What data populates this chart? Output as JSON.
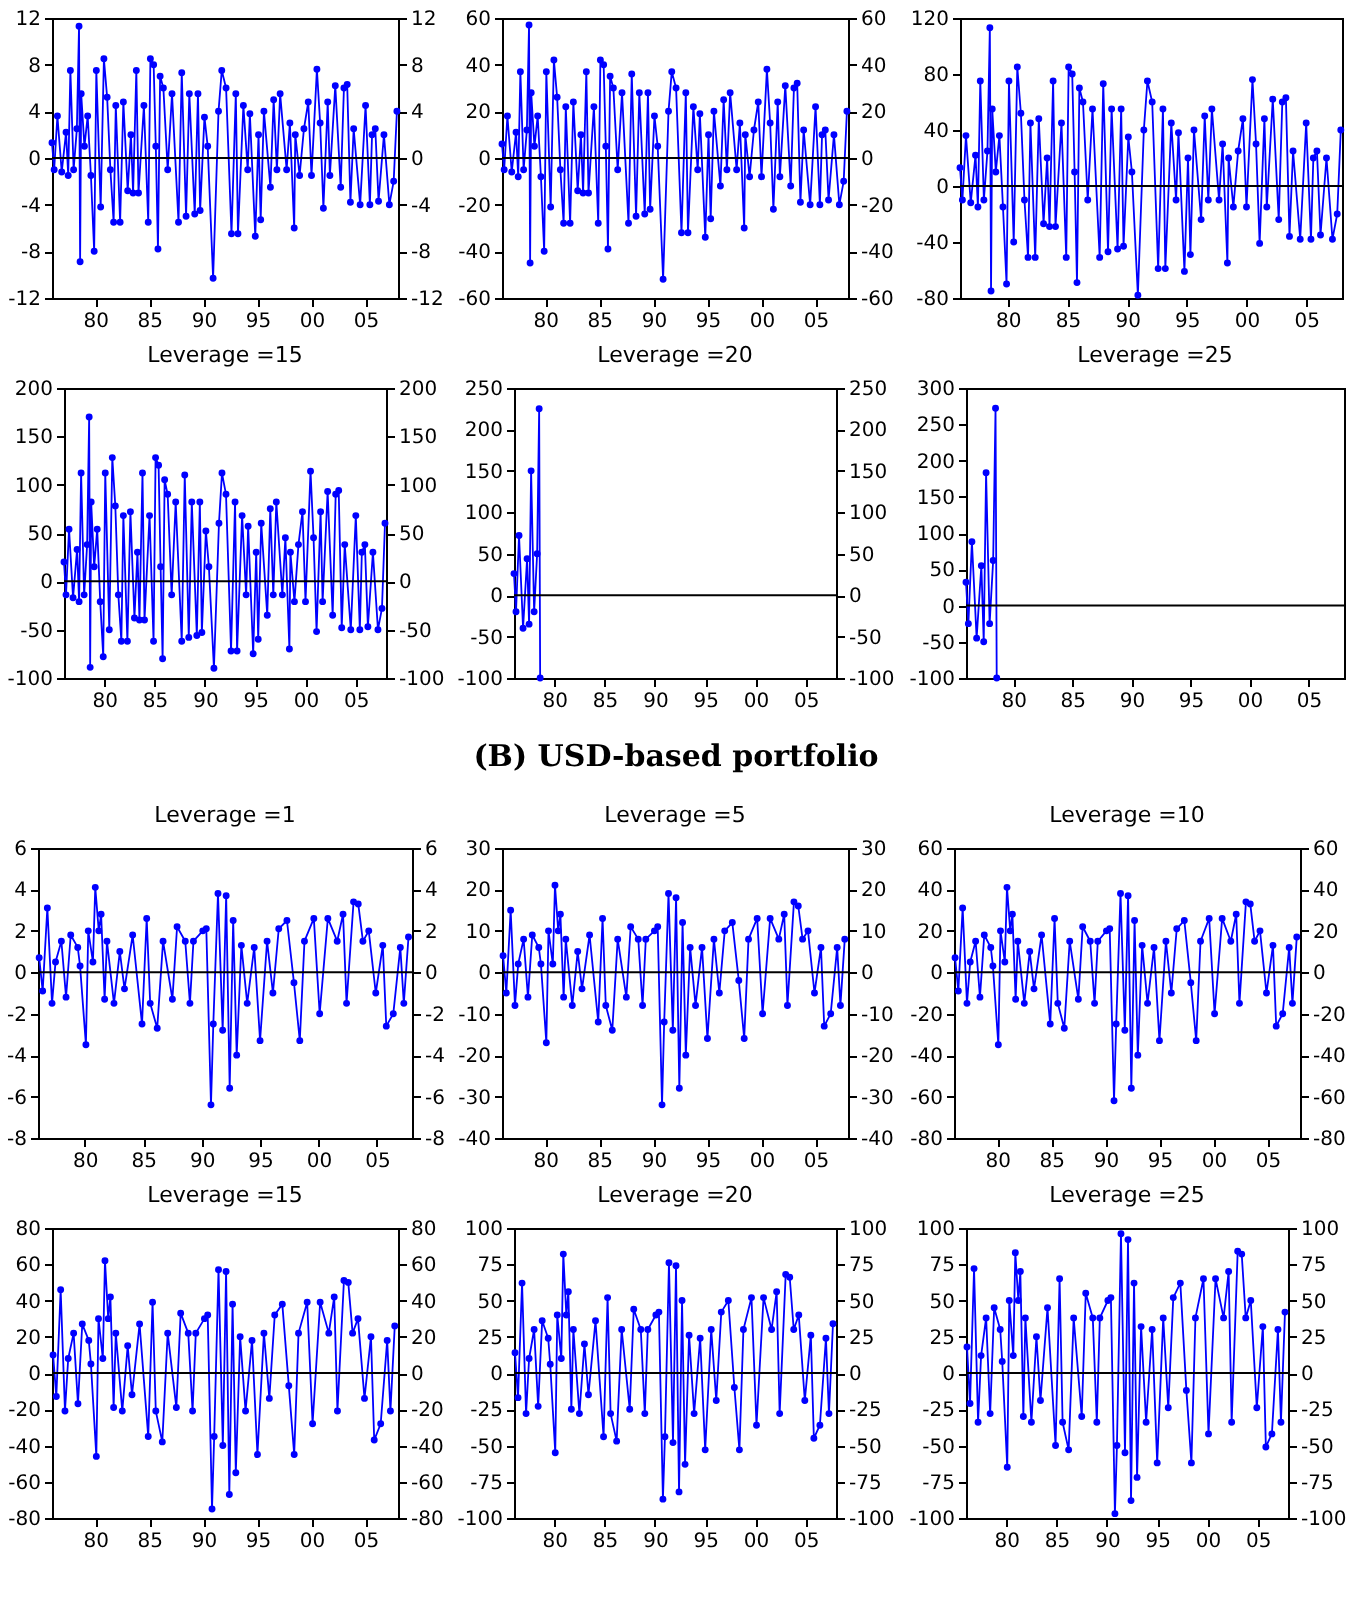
{
  "chart_data": [
    {
      "type": "line",
      "color": "#0000ff",
      "marker": "circle",
      "xlim": [
        1976,
        2008
      ],
      "xticks": [
        {
          "value": 1980,
          "label": "80"
        },
        {
          "value": 1985,
          "label": "85"
        },
        {
          "value": 1990,
          "label": "90"
        },
        {
          "value": 1995,
          "label": "95"
        },
        {
          "value": 2000,
          "label": "00"
        },
        {
          "value": 2005,
          "label": "05"
        }
      ],
      "ylim": [
        -12,
        12
      ],
      "yticks": [
        -12,
        -8,
        -4,
        0,
        4,
        8,
        12
      ],
      "y2lim": [
        -12,
        12
      ],
      "y2ticks": [
        -12,
        -8,
        -4,
        0,
        4,
        8,
        12
      ],
      "ref_lines": [
        {
          "axis": "y",
          "value": 0,
          "color": "#000000"
        }
      ],
      "x": [
        1976.0,
        1976.2,
        1976.5,
        1976.9,
        1977.3,
        1977.5,
        1977.7,
        1978.0,
        1978.3,
        1978.5,
        1978.6,
        1978.7,
        1979.0,
        1979.3,
        1979.6,
        1979.9,
        1980.1,
        1980.5,
        1980.8,
        1981.1,
        1981.4,
        1981.7,
        1981.9,
        1982.3,
        1982.6,
        1983.0,
        1983.3,
        1983.5,
        1983.8,
        1984.0,
        1984.5,
        1984.9,
        1985.1,
        1985.4,
        1985.6,
        1985.8,
        1986.0,
        1986.3,
        1986.7,
        1987.1,
        1987.7,
        1988.0,
        1988.4,
        1988.7,
        1989.2,
        1989.5,
        1989.7,
        1990.1,
        1990.4,
        1990.9,
        1991.4,
        1991.7,
        1992.1,
        1992.6,
        1993.0,
        1993.2,
        1993.7,
        1994.1,
        1994.3,
        1994.8,
        1995.1,
        1995.3,
        1995.6,
        1996.2,
        1996.5,
        1996.8,
        1997.1,
        1997.7,
        1998.0,
        1998.4,
        1998.5,
        1998.9,
        1999.3,
        1999.7,
        2000.0,
        2000.5,
        2000.8,
        2001.1,
        2001.5,
        2001.7,
        2002.2,
        2002.7,
        2003.0,
        2003.3,
        2003.6,
        2003.9,
        2004.5,
        2005.0,
        2005.4,
        2005.6,
        2005.9,
        2006.2,
        2006.7,
        2007.2,
        2007.6,
        2007.9
      ],
      "values": [
        1.3,
        -1.0,
        3.6,
        -1.2,
        2.2,
        -1.5,
        7.5,
        -1.0,
        2.5,
        11.3,
        -8.9,
        5.5,
        1.0,
        3.6,
        -1.5,
        -8.0,
        7.5,
        -4.2,
        8.5,
        5.2,
        -1.0,
        -5.5,
        4.5,
        -5.5,
        4.8,
        -2.8,
        2.0,
        -3.0,
        7.5,
        -3.0,
        4.5,
        -5.5,
        8.5,
        8.0,
        1.0,
        -7.8,
        7.0,
        6.0,
        -1.0,
        5.5,
        -5.5,
        7.3,
        -5.0,
        5.5,
        -4.8,
        5.5,
        -4.5,
        3.5,
        1.0,
        -10.3,
        4.0,
        7.5,
        6.0,
        -6.5,
        5.5,
        -6.5,
        4.5,
        -1.0,
        3.8,
        -6.7,
        2.0,
        -5.3,
        4.0,
        -2.5,
        5.0,
        -1.0,
        5.5,
        -1.0,
        3.0,
        -6.0,
        2.0,
        -1.5,
        2.5,
        4.8,
        -1.5,
        7.6,
        3.0,
        -4.3,
        4.8,
        -1.5,
        6.2,
        -2.5,
        6.0,
        6.3,
        -3.8,
        2.5,
        -4.0,
        4.5,
        -4.0,
        2.0,
        2.5,
        -3.7,
        2.0,
        -4.0,
        -2.0,
        4.0
      ]
    },
    {
      "type": "line",
      "color": "#0000ff",
      "marker": "circle",
      "xlim": [
        1976,
        2008
      ],
      "xticks": [
        {
          "value": 1980,
          "label": "80"
        },
        {
          "value": 1985,
          "label": "85"
        },
        {
          "value": 1990,
          "label": "90"
        },
        {
          "value": 1995,
          "label": "95"
        },
        {
          "value": 2000,
          "label": "00"
        },
        {
          "value": 2005,
          "label": "05"
        }
      ],
      "ylim": [
        -60,
        60
      ],
      "yticks": [
        -60,
        -40,
        -20,
        0,
        20,
        40,
        60
      ],
      "y2lim": [
        -60,
        60
      ],
      "y2ticks": [
        -60,
        -40,
        -20,
        0,
        20,
        40,
        60
      ],
      "ref_lines": [
        {
          "axis": "y",
          "value": 0,
          "color": "#000000"
        }
      ],
      "x": [
        1976.0,
        1976.2,
        1976.5,
        1976.9,
        1977.3,
        1977.5,
        1977.7,
        1978.0,
        1978.3,
        1978.5,
        1978.6,
        1978.7,
        1979.0,
        1979.3,
        1979.6,
        1979.9,
        1980.1,
        1980.5,
        1980.8,
        1981.1,
        1981.4,
        1981.7,
        1981.9,
        1982.3,
        1982.6,
        1983.0,
        1983.3,
        1983.5,
        1983.8,
        1984.0,
        1984.5,
        1984.9,
        1985.1,
        1985.4,
        1985.6,
        1985.8,
        1986.0,
        1986.3,
        1986.7,
        1987.1,
        1987.7,
        1988.0,
        1988.4,
        1988.7,
        1989.2,
        1989.5,
        1989.7,
        1990.1,
        1990.4,
        1990.9,
        1991.4,
        1991.7,
        1992.1,
        1992.6,
        1993.0,
        1993.2,
        1993.7,
        1994.1,
        1994.3,
        1994.8,
        1995.1,
        1995.3,
        1995.6,
        1996.2,
        1996.5,
        1996.8,
        1997.1,
        1997.7,
        1998.0,
        1998.4,
        1998.5,
        1998.9,
        1999.3,
        1999.7,
        2000.0,
        2000.5,
        2000.8,
        2001.1,
        2001.5,
        2001.7,
        2002.2,
        2002.7,
        2003.0,
        2003.3,
        2003.6,
        2003.9,
        2004.5,
        2005.0,
        2005.4,
        2005.6,
        2005.9,
        2006.2,
        2006.7,
        2007.2,
        2007.6,
        2007.9
      ],
      "values": [
        6,
        -5,
        18,
        -6,
        11,
        -8,
        37,
        -5,
        12,
        57,
        -45,
        28,
        5,
        18,
        -8,
        -40,
        37,
        -21,
        42,
        26,
        -5,
        -28,
        22,
        -28,
        24,
        -14,
        10,
        -15,
        37,
        -15,
        22,
        -28,
        42,
        40,
        5,
        -39,
        35,
        30,
        -5,
        28,
        -28,
        36,
        -25,
        28,
        -24,
        28,
        -22,
        18,
        5,
        -52,
        20,
        37,
        30,
        -32,
        28,
        -32,
        22,
        -5,
        19,
        -34,
        10,
        -26,
        20,
        -12,
        25,
        -5,
        28,
        -5,
        15,
        -30,
        10,
        -8,
        12,
        24,
        -8,
        38,
        15,
        -22,
        24,
        -8,
        31,
        -12,
        30,
        32,
        -19,
        12,
        -20,
        22,
        -20,
        10,
        12,
        -18,
        10,
        -20,
        -10,
        20
      ]
    },
    {
      "type": "line",
      "color": "#0000ff",
      "marker": "circle",
      "xlim": [
        1976,
        2008
      ],
      "xticks": [
        {
          "value": 1980,
          "label": "80"
        },
        {
          "value": 1985,
          "label": "85"
        },
        {
          "value": 1990,
          "label": "90"
        },
        {
          "value": 1995,
          "label": "95"
        },
        {
          "value": 2000,
          "label": "00"
        },
        {
          "value": 2005,
          "label": "05"
        }
      ],
      "ylim": [
        -80,
        120
      ],
      "yticks": [
        -80,
        -40,
        0,
        40,
        80,
        120
      ],
      "ref_lines": [
        {
          "axis": "y",
          "value": 0,
          "color": "#000000"
        }
      ],
      "x": [
        1976.0,
        1976.2,
        1976.5,
        1976.9,
        1977.3,
        1977.5,
        1977.7,
        1978.0,
        1978.3,
        1978.5,
        1978.6,
        1978.7,
        1979.0,
        1979.3,
        1979.6,
        1979.9,
        1980.1,
        1980.5,
        1980.8,
        1981.1,
        1981.4,
        1981.7,
        1981.9,
        1982.3,
        1982.6,
        1983.0,
        1983.3,
        1983.5,
        1983.8,
        1984.0,
        1984.5,
        1984.9,
        1985.1,
        1985.4,
        1985.6,
        1985.8,
        1986.0,
        1986.3,
        1986.7,
        1987.1,
        1987.7,
        1988.0,
        1988.4,
        1988.7,
        1989.2,
        1989.5,
        1989.7,
        1990.1,
        1990.4,
        1990.9,
        1991.4,
        1991.7,
        1992.1,
        1992.6,
        1993.0,
        1993.2,
        1993.7,
        1994.1,
        1994.3,
        1994.8,
        1995.1,
        1995.3,
        1995.6,
        1996.2,
        1996.5,
        1996.8,
        1997.1,
        1997.7,
        1998.0,
        1998.4,
        1998.5,
        1998.9,
        1999.3,
        1999.7,
        2000.0,
        2000.5,
        2000.8,
        2001.1,
        2001.5,
        2001.7,
        2002.2,
        2002.7,
        2003.0,
        2003.3,
        2003.6,
        2003.9,
        2004.5,
        2005.0,
        2005.4,
        2005.6,
        2005.9,
        2006.2,
        2006.7,
        2007.2,
        2007.6,
        2007.9
      ],
      "values": [
        13,
        -10,
        36,
        -12,
        22,
        -15,
        75,
        -10,
        25,
        113,
        -75,
        55,
        10,
        36,
        -15,
        -70,
        75,
        -40,
        85,
        52,
        -10,
        -51,
        45,
        -51,
        48,
        -27,
        20,
        -29,
        75,
        -29,
        45,
        -51,
        85,
        80,
        10,
        -69,
        70,
        60,
        -10,
        55,
        -51,
        73,
        -47,
        55,
        -45,
        55,
        -43,
        35,
        10,
        -78,
        40,
        75,
        60,
        -59,
        55,
        -59,
        45,
        -10,
        38,
        -61,
        20,
        -49,
        40,
        -24,
        50,
        -10,
        55,
        -10,
        30,
        -55,
        20,
        -15,
        25,
        48,
        -15,
        76,
        30,
        -41,
        48,
        -15,
        62,
        -24,
        60,
        63,
        -36,
        25,
        -38,
        45,
        -38,
        20,
        25,
        -35,
        20,
        -38,
        -20,
        40
      ]
    },
    {
      "type": "line",
      "title": "Leverage =15",
      "color": "#0000ff",
      "marker": "circle",
      "xlim": [
        1976,
        2008
      ],
      "xticks": [
        {
          "value": 1980,
          "label": "80"
        },
        {
          "value": 1985,
          "label": "85"
        },
        {
          "value": 1990,
          "label": "90"
        },
        {
          "value": 1995,
          "label": "95"
        },
        {
          "value": 2000,
          "label": "00"
        },
        {
          "value": 2005,
          "label": "05"
        }
      ],
      "ylim": [
        -100,
        200
      ],
      "yticks": [
        -100,
        -50,
        0,
        50,
        100,
        150,
        200
      ],
      "y2lim": [
        -100,
        200
      ],
      "y2ticks": [
        -100,
        -50,
        0,
        50,
        100,
        150,
        200
      ],
      "ref_lines": [
        {
          "axis": "y",
          "value": 0,
          "color": "#000000"
        }
      ],
      "x": [
        1976.0,
        1976.2,
        1976.5,
        1976.9,
        1977.3,
        1977.5,
        1977.7,
        1978.0,
        1978.3,
        1978.5,
        1978.6,
        1978.7,
        1979.0,
        1979.3,
        1979.6,
        1979.9,
        1980.1,
        1980.5,
        1980.8,
        1981.1,
        1981.4,
        1981.7,
        1981.9,
        1982.3,
        1982.6,
        1983.0,
        1983.3,
        1983.5,
        1983.8,
        1984.0,
        1984.5,
        1984.9,
        1985.1,
        1985.4,
        1985.6,
        1985.8,
        1986.0,
        1986.3,
        1986.7,
        1987.1,
        1987.7,
        1988.0,
        1988.4,
        1988.7,
        1989.2,
        1989.5,
        1989.7,
        1990.1,
        1990.4,
        1990.9,
        1991.4,
        1991.7,
        1992.1,
        1992.6,
        1993.0,
        1993.2,
        1993.7,
        1994.1,
        1994.3,
        1994.8,
        1995.1,
        1995.3,
        1995.6,
        1996.2,
        1996.5,
        1996.8,
        1997.1,
        1997.7,
        1998.0,
        1998.4,
        1998.5,
        1998.9,
        1999.3,
        1999.7,
        2000.0,
        2000.5,
        2000.8,
        2001.1,
        2001.5,
        2001.7,
        2002.2,
        2002.7,
        2003.0,
        2003.3,
        2003.6,
        2003.9,
        2004.5,
        2005.0,
        2005.4,
        2005.6,
        2005.9,
        2006.2,
        2006.7,
        2007.2,
        2007.6,
        2007.9
      ],
      "values": [
        20,
        -14,
        54,
        -17,
        33,
        -21,
        112,
        -14,
        38,
        170,
        -89,
        82,
        15,
        54,
        -21,
        -78,
        112,
        -50,
        128,
        78,
        -14,
        -62,
        68,
        -62,
        72,
        -38,
        30,
        -40,
        112,
        -40,
        68,
        -62,
        128,
        120,
        15,
        -80,
        105,
        90,
        -14,
        82,
        -62,
        110,
        -58,
        82,
        -56,
        82,
        -53,
        52,
        15,
        -90,
        60,
        112,
        90,
        -72,
        82,
        -72,
        68,
        -14,
        57,
        -75,
        30,
        -60,
        60,
        -35,
        75,
        -14,
        82,
        -14,
        45,
        -70,
        30,
        -21,
        38,
        72,
        -21,
        114,
        45,
        -52,
        72,
        -21,
        93,
        -35,
        90,
        94,
        -48,
        38,
        -50,
        68,
        -50,
        30,
        38,
        -47,
        30,
        -50,
        -28,
        60
      ]
    },
    {
      "type": "line",
      "title": "Leverage =20",
      "color": "#0000ff",
      "marker": "circle",
      "xlim": [
        1976,
        2008
      ],
      "xticks": [
        {
          "value": 1980,
          "label": "80"
        },
        {
          "value": 1985,
          "label": "85"
        },
        {
          "value": 1990,
          "label": "90"
        },
        {
          "value": 1995,
          "label": "95"
        },
        {
          "value": 2000,
          "label": "00"
        },
        {
          "value": 2005,
          "label": "05"
        }
      ],
      "ylim": [
        -100,
        250
      ],
      "yticks": [
        -100,
        -50,
        0,
        50,
        100,
        150,
        200,
        250
      ],
      "y2lim": [
        -100,
        250
      ],
      "y2ticks": [
        -100,
        -50,
        0,
        50,
        100,
        150,
        200,
        250
      ],
      "ref_lines": [
        {
          "axis": "y",
          "value": 0,
          "color": "#000000"
        }
      ],
      "x": [
        1976.0,
        1976.2,
        1976.5,
        1976.9,
        1977.3,
        1977.5,
        1977.7,
        1978.0,
        1978.3,
        1978.5,
        1978.6
      ],
      "values": [
        26,
        -20,
        72,
        -40,
        44,
        -35,
        150,
        -20,
        50,
        225,
        -100
      ]
    },
    {
      "type": "line",
      "title": "Leverage =25",
      "color": "#0000ff",
      "marker": "circle",
      "xlim": [
        1976,
        2008
      ],
      "xticks": [
        {
          "value": 1980,
          "label": "80"
        },
        {
          "value": 1985,
          "label": "85"
        },
        {
          "value": 1990,
          "label": "90"
        },
        {
          "value": 1995,
          "label": "95"
        },
        {
          "value": 2000,
          "label": "00"
        },
        {
          "value": 2005,
          "label": "05"
        }
      ],
      "ylim": [
        -100,
        300
      ],
      "yticks": [
        -100,
        -50,
        0,
        50,
        100,
        150,
        200,
        250,
        300
      ],
      "ref_lines": [
        {
          "axis": "y",
          "value": 0,
          "color": "#000000"
        }
      ],
      "x": [
        1976.0,
        1976.2,
        1976.5,
        1976.9,
        1977.3,
        1977.5,
        1977.7,
        1978.0,
        1978.3,
        1978.5,
        1978.6
      ],
      "values": [
        32,
        -25,
        88,
        -45,
        55,
        -50,
        183,
        -25,
        62,
        272,
        -100
      ]
    },
    {
      "type": "line",
      "title": "Leverage =1",
      "annotations": [
        "(B) USD-based portfolio"
      ],
      "color": "#0000ff",
      "marker": "circle",
      "xlim": [
        1976,
        2008
      ],
      "xticks": [
        {
          "value": 1980,
          "label": "80"
        },
        {
          "value": 1985,
          "label": "85"
        },
        {
          "value": 1990,
          "label": "90"
        },
        {
          "value": 1995,
          "label": "95"
        },
        {
          "value": 2000,
          "label": "00"
        },
        {
          "value": 2005,
          "label": "05"
        }
      ],
      "ylim": [
        -8,
        6
      ],
      "yticks": [
        -8,
        -6,
        -4,
        -2,
        0,
        2,
        4,
        6
      ],
      "y2lim": [
        -8,
        6
      ],
      "y2ticks": [
        -8,
        -6,
        -4,
        -2,
        0,
        2,
        4,
        6
      ],
      "ref_lines": [
        {
          "axis": "y",
          "value": 0,
          "color": "#000000"
        }
      ],
      "x": [
        1976.1,
        1976.4,
        1976.8,
        1977.2,
        1977.5,
        1978.0,
        1978.4,
        1978.8,
        1979.4,
        1979.6,
        1980.1,
        1980.3,
        1980.7,
        1980.9,
        1981.2,
        1981.4,
        1981.7,
        1981.9,
        1982.5,
        1983.0,
        1983.4,
        1984.1,
        1984.9,
        1985.3,
        1985.6,
        1986.2,
        1986.7,
        1987.5,
        1987.9,
        1988.6,
        1989.0,
        1989.3,
        1990.1,
        1990.4,
        1990.8,
        1991.0,
        1991.4,
        1991.8,
        1992.1,
        1992.4,
        1992.7,
        1993.0,
        1993.4,
        1993.9,
        1994.5,
        1995.0,
        1995.6,
        1996.1,
        1996.6,
        1997.3,
        1997.9,
        1998.4,
        1998.8,
        1999.6,
        2000.1,
        2000.8,
        2001.6,
        2002.1,
        2002.4,
        2003.0,
        2003.4,
        2003.8,
        2004.3,
        2004.9,
        2005.5,
        2005.8,
        2006.4,
        2007.0,
        2007.3,
        2007.7
      ],
      "values": [
        0.7,
        -0.9,
        3.1,
        -1.5,
        0.5,
        1.5,
        -1.2,
        1.8,
        1.2,
        0.3,
        -3.5,
        2.0,
        0.5,
        4.1,
        2.0,
        2.8,
        -1.3,
        1.5,
        -1.5,
        1.0,
        -0.8,
        1.8,
        -2.5,
        2.6,
        -1.5,
        -2.7,
        1.5,
        -1.3,
        2.2,
        1.5,
        -1.5,
        1.5,
        2.0,
        2.1,
        -6.4,
        -2.5,
        3.8,
        -2.8,
        3.7,
        -5.6,
        2.5,
        -4.0,
        1.3,
        -1.5,
        1.2,
        -3.3,
        1.5,
        -1.0,
        2.1,
        2.5,
        -0.5,
        -3.3,
        1.5,
        2.6,
        -2.0,
        2.6,
        1.5,
        2.8,
        -1.5,
        3.4,
        3.3,
        1.5,
        2.0,
        -1.0,
        1.3,
        -2.6,
        -2.0,
        1.2,
        -1.5,
        1.7
      ]
    },
    {
      "type": "line",
      "title": "Leverage =5",
      "color": "#0000ff",
      "marker": "circle",
      "xlim": [
        1976,
        2008
      ],
      "xticks": [
        {
          "value": 1980,
          "label": "80"
        },
        {
          "value": 1985,
          "label": "85"
        },
        {
          "value": 1990,
          "label": "90"
        },
        {
          "value": 1995,
          "label": "95"
        },
        {
          "value": 2000,
          "label": "00"
        },
        {
          "value": 2005,
          "label": "05"
        }
      ],
      "ylim": [
        -40,
        30
      ],
      "yticks": [
        -40,
        -30,
        -20,
        -10,
        0,
        10,
        20,
        30
      ],
      "y2lim": [
        -40,
        30
      ],
      "y2ticks": [
        -40,
        -30,
        -20,
        -10,
        0,
        10,
        20,
        30
      ],
      "ref_lines": [
        {
          "axis": "y",
          "value": 0,
          "color": "#000000"
        }
      ],
      "x": [
        1976.1,
        1976.4,
        1976.8,
        1977.2,
        1977.5,
        1978.0,
        1978.4,
        1978.8,
        1979.4,
        1979.6,
        1980.1,
        1980.3,
        1980.7,
        1980.9,
        1981.2,
        1981.4,
        1981.7,
        1981.9,
        1982.5,
        1983.0,
        1983.4,
        1984.1,
        1984.9,
        1985.3,
        1985.6,
        1986.2,
        1986.7,
        1987.5,
        1987.9,
        1988.6,
        1989.0,
        1989.3,
        1990.1,
        1990.4,
        1990.8,
        1991.0,
        1991.4,
        1991.8,
        1992.1,
        1992.4,
        1992.7,
        1993.0,
        1993.4,
        1993.9,
        1994.5,
        1995.0,
        1995.6,
        1996.1,
        1996.6,
        1997.3,
        1997.9,
        1998.4,
        1998.8,
        1999.6,
        2000.1,
        2000.8,
        2001.6,
        2002.1,
        2002.4,
        2003.0,
        2003.4,
        2003.8,
        2004.3,
        2004.9,
        2005.5,
        2005.8,
        2006.4,
        2007.0,
        2007.3,
        2007.7
      ],
      "values": [
        4,
        -5,
        15,
        -8,
        2,
        8,
        -6,
        9,
        6,
        2,
        -17,
        10,
        2,
        21,
        10,
        14,
        -6,
        8,
        -8,
        5,
        -4,
        9,
        -12,
        13,
        -8,
        -14,
        8,
        -6,
        11,
        8,
        -8,
        8,
        10,
        11,
        -32,
        -12,
        19,
        -14,
        18,
        -28,
        12,
        -20,
        6,
        -8,
        6,
        -16,
        8,
        -5,
        10,
        12,
        -2,
        -16,
        8,
        13,
        -10,
        13,
        8,
        14,
        -8,
        17,
        16,
        8,
        10,
        -5,
        6,
        -13,
        -10,
        6,
        -8,
        8
      ]
    },
    {
      "type": "line",
      "title": "Leverage =10",
      "color": "#0000ff",
      "marker": "circle",
      "xlim": [
        1976,
        2008
      ],
      "xticks": [
        {
          "value": 1980,
          "label": "80"
        },
        {
          "value": 1985,
          "label": "85"
        },
        {
          "value": 1990,
          "label": "90"
        },
        {
          "value": 1995,
          "label": "95"
        },
        {
          "value": 2000,
          "label": "00"
        },
        {
          "value": 2005,
          "label": "05"
        }
      ],
      "ylim": [
        -80,
        60
      ],
      "yticks": [
        -80,
        -60,
        -40,
        -20,
        0,
        20,
        40,
        60
      ],
      "y2lim": [
        -80,
        60
      ],
      "y2ticks": [
        -80,
        -60,
        -40,
        -20,
        0,
        20,
        40,
        60
      ],
      "ref_lines": [
        {
          "axis": "y",
          "value": 0,
          "color": "#000000"
        }
      ],
      "x": [
        1976.1,
        1976.4,
        1976.8,
        1977.2,
        1977.5,
        1978.0,
        1978.4,
        1978.8,
        1979.4,
        1979.6,
        1980.1,
        1980.3,
        1980.7,
        1980.9,
        1981.2,
        1981.4,
        1981.7,
        1981.9,
        1982.5,
        1983.0,
        1983.4,
        1984.1,
        1984.9,
        1985.3,
        1985.6,
        1986.2,
        1986.7,
        1987.5,
        1987.9,
        1988.6,
        1989.0,
        1989.3,
        1990.1,
        1990.4,
        1990.8,
        1991.0,
        1991.4,
        1991.8,
        1992.1,
        1992.4,
        1992.7,
        1993.0,
        1993.4,
        1993.9,
        1994.5,
        1995.0,
        1995.6,
        1996.1,
        1996.6,
        1997.3,
        1997.9,
        1998.4,
        1998.8,
        1999.6,
        2000.1,
        2000.8,
        2001.6,
        2002.1,
        2002.4,
        2003.0,
        2003.4,
        2003.8,
        2004.3,
        2004.9,
        2005.5,
        2005.8,
        2006.4,
        2007.0,
        2007.3,
        2007.7
      ],
      "values": [
        7,
        -9,
        31,
        -15,
        5,
        15,
        -12,
        18,
        12,
        3,
        -35,
        20,
        5,
        41,
        20,
        28,
        -13,
        15,
        -15,
        10,
        -8,
        18,
        -25,
        26,
        -15,
        -27,
        15,
        -13,
        22,
        15,
        -15,
        15,
        20,
        21,
        -62,
        -25,
        38,
        -28,
        37,
        -56,
        25,
        -40,
        13,
        -15,
        12,
        -33,
        15,
        -10,
        21,
        25,
        -5,
        -33,
        15,
        26,
        -20,
        26,
        15,
        28,
        -15,
        34,
        33,
        15,
        20,
        -10,
        13,
        -26,
        -20,
        12,
        -15,
        17
      ]
    },
    {
      "type": "line",
      "title": "Leverage =15",
      "color": "#0000ff",
      "marker": "circle",
      "xlim": [
        1976,
        2008
      ],
      "xticks": [
        {
          "value": 1980,
          "label": "80"
        },
        {
          "value": 1985,
          "label": "85"
        },
        {
          "value": 1990,
          "label": "90"
        },
        {
          "value": 1995,
          "label": "95"
        },
        {
          "value": 2000,
          "label": "00"
        },
        {
          "value": 2005,
          "label": "05"
        }
      ],
      "ylim": [
        -80,
        80
      ],
      "yticks": [
        -80,
        -60,
        -40,
        -20,
        0,
        20,
        40,
        60,
        80
      ],
      "y2lim": [
        -80,
        80
      ],
      "y2ticks": [
        -80,
        -60,
        -40,
        -20,
        0,
        20,
        40,
        60,
        80
      ],
      "ref_lines": [
        {
          "axis": "y",
          "value": 0,
          "color": "#000000"
        }
      ],
      "x": [
        1976.1,
        1976.4,
        1976.8,
        1977.2,
        1977.5,
        1978.0,
        1978.4,
        1978.8,
        1979.4,
        1979.6,
        1980.1,
        1980.3,
        1980.7,
        1980.9,
        1981.2,
        1981.4,
        1981.7,
        1981.9,
        1982.5,
        1983.0,
        1983.4,
        1984.1,
        1984.9,
        1985.3,
        1985.6,
        1986.2,
        1986.7,
        1987.5,
        1987.9,
        1988.6,
        1989.0,
        1989.3,
        1990.1,
        1990.4,
        1990.8,
        1991.0,
        1991.4,
        1991.8,
        1992.1,
        1992.4,
        1992.7,
        1993.0,
        1993.4,
        1993.9,
        1994.5,
        1995.0,
        1995.6,
        1996.1,
        1996.6,
        1997.3,
        1997.9,
        1998.4,
        1998.8,
        1999.6,
        2000.1,
        2000.8,
        2001.6,
        2002.1,
        2002.4,
        2003.0,
        2003.4,
        2003.8,
        2004.3,
        2004.9,
        2005.5,
        2005.8,
        2006.4,
        2007.0,
        2007.3,
        2007.7
      ],
      "values": [
        10,
        -13,
        46,
        -21,
        8,
        22,
        -17,
        27,
        18,
        5,
        -46,
        30,
        8,
        62,
        30,
        42,
        -19,
        22,
        -21,
        15,
        -12,
        27,
        -35,
        39,
        -21,
        -38,
        22,
        -19,
        33,
        22,
        -21,
        22,
        30,
        32,
        -75,
        -35,
        57,
        -40,
        56,
        -67,
        38,
        -55,
        20,
        -21,
        18,
        -45,
        22,
        -14,
        32,
        38,
        -7,
        -45,
        22,
        39,
        -28,
        39,
        22,
        42,
        -21,
        51,
        50,
        22,
        30,
        -14,
        20,
        -37,
        -28,
        18,
        -21,
        26
      ]
    },
    {
      "type": "line",
      "title": "Leverage =20",
      "color": "#0000ff",
      "marker": "circle",
      "xlim": [
        1976,
        2008
      ],
      "xticks": [
        {
          "value": 1980,
          "label": "80"
        },
        {
          "value": 1985,
          "label": "85"
        },
        {
          "value": 1990,
          "label": "90"
        },
        {
          "value": 1995,
          "label": "95"
        },
        {
          "value": 2000,
          "label": "00"
        },
        {
          "value": 2005,
          "label": "05"
        }
      ],
      "ylim": [
        -100,
        100
      ],
      "yticks": [
        -100,
        -75,
        -50,
        -25,
        0,
        25,
        50,
        75,
        100
      ],
      "y2lim": [
        -100,
        100
      ],
      "y2ticks": [
        -100,
        -75,
        -50,
        -25,
        0,
        25,
        50,
        75,
        100
      ],
      "ref_lines": [
        {
          "axis": "y",
          "value": 0,
          "color": "#000000"
        }
      ],
      "x": [
        1976.1,
        1976.4,
        1976.8,
        1977.2,
        1977.5,
        1978.0,
        1978.4,
        1978.8,
        1979.4,
        1979.6,
        1980.1,
        1980.3,
        1980.7,
        1980.9,
        1981.2,
        1981.4,
        1981.7,
        1981.9,
        1982.5,
        1983.0,
        1983.4,
        1984.1,
        1984.9,
        1985.3,
        1985.6,
        1986.2,
        1986.7,
        1987.5,
        1987.9,
        1988.6,
        1989.0,
        1989.3,
        1990.1,
        1990.4,
        1990.8,
        1991.0,
        1991.4,
        1991.8,
        1992.1,
        1992.4,
        1992.7,
        1993.0,
        1993.4,
        1993.9,
        1994.5,
        1995.0,
        1995.6,
        1996.1,
        1996.6,
        1997.3,
        1997.9,
        1998.4,
        1998.8,
        1999.6,
        2000.1,
        2000.8,
        2001.6,
        2002.1,
        2002.4,
        2003.0,
        2003.4,
        2003.8,
        2004.3,
        2004.9,
        2005.5,
        2005.8,
        2006.4,
        2007.0,
        2007.3,
        2007.7
      ],
      "values": [
        14,
        -17,
        62,
        -28,
        10,
        30,
        -23,
        36,
        24,
        6,
        -55,
        40,
        10,
        82,
        40,
        56,
        -25,
        30,
        -28,
        20,
        -15,
        36,
        -44,
        52,
        -28,
        -47,
        30,
        -25,
        44,
        30,
        -28,
        30,
        40,
        42,
        -87,
        -44,
        76,
        -48,
        74,
        -82,
        50,
        -63,
        26,
        -28,
        24,
        -53,
        30,
        -19,
        42,
        50,
        -10,
        -53,
        30,
        52,
        -36,
        52,
        30,
        56,
        -28,
        68,
        66,
        30,
        40,
        -19,
        26,
        -45,
        -36,
        24,
        -28,
        34
      ]
    },
    {
      "type": "line",
      "title": "Leverage =25",
      "color": "#0000ff",
      "marker": "circle",
      "xlim": [
        1976,
        2008
      ],
      "xticks": [
        {
          "value": 1980,
          "label": "80"
        },
        {
          "value": 1985,
          "label": "85"
        },
        {
          "value": 1990,
          "label": "90"
        },
        {
          "value": 1995,
          "label": "95"
        },
        {
          "value": 2000,
          "label": "00"
        },
        {
          "value": 2005,
          "label": "05"
        }
      ],
      "ylim": [
        -100,
        100
      ],
      "yticks": [
        -100,
        -75,
        -50,
        -25,
        0,
        25,
        50,
        75,
        100
      ],
      "y2lim": [
        -100,
        100
      ],
      "y2ticks": [
        -100,
        -75,
        -50,
        -25,
        0,
        25,
        50,
        75,
        100
      ],
      "ref_lines": [
        {
          "axis": "y",
          "value": 0,
          "color": "#000000"
        }
      ],
      "x": [
        1976.1,
        1976.4,
        1976.8,
        1977.2,
        1977.5,
        1978.0,
        1978.4,
        1978.8,
        1979.4,
        1979.6,
        1980.1,
        1980.3,
        1980.7,
        1980.9,
        1981.2,
        1981.4,
        1981.7,
        1981.9,
        1982.5,
        1983.0,
        1983.4,
        1984.1,
        1984.9,
        1985.3,
        1985.6,
        1986.2,
        1986.7,
        1987.5,
        1987.9,
        1988.6,
        1989.0,
        1989.3,
        1990.1,
        1990.4,
        1990.8,
        1991.0,
        1991.4,
        1991.8,
        1992.1,
        1992.4,
        1992.7,
        1993.0,
        1993.4,
        1993.9,
        1994.5,
        1995.0,
        1995.6,
        1996.1,
        1996.6,
        1997.3,
        1997.9,
        1998.4,
        1998.8,
        1999.6,
        2000.1,
        2000.8,
        2001.6,
        2002.1,
        2002.4,
        2003.0,
        2003.4,
        2003.8,
        2004.3,
        2004.9,
        2005.5,
        2005.8,
        2006.4,
        2007.0,
        2007.3,
        2007.7
      ],
      "values": [
        18,
        -21,
        72,
        -34,
        12,
        38,
        -28,
        45,
        30,
        8,
        -65,
        50,
        12,
        83,
        50,
        70,
        -30,
        38,
        -34,
        25,
        -19,
        45,
        -50,
        65,
        -34,
        -53,
        38,
        -30,
        55,
        38,
        -34,
        38,
        50,
        52,
        -97,
        -50,
        96,
        -55,
        92,
        -88,
        62,
        -72,
        32,
        -34,
        30,
        -62,
        38,
        -24,
        52,
        62,
        -12,
        -62,
        38,
        65,
        -42,
        65,
        38,
        70,
        -34,
        84,
        82,
        38,
        50,
        -24,
        32,
        -51,
        -42,
        30,
        -34,
        42
      ]
    }
  ]
}
